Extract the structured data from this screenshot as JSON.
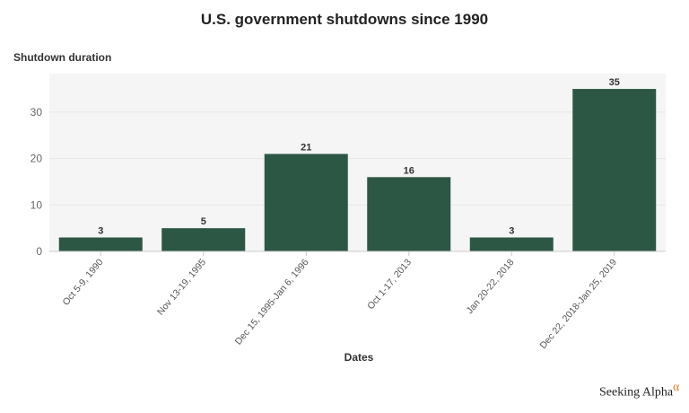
{
  "chart_data": {
    "type": "bar",
    "title": "U.S. government shutdowns since 1990",
    "xlabel": "Dates",
    "ylabel": "Shutdown duration",
    "categories": [
      "Oct 5-9, 1990",
      "Nov 13-19, 1995",
      "Dec 15, 1995-Jan 6, 1996",
      "Oct 1-17, 2013",
      "Jan 20-22, 2018",
      "Dec 22, 2018-Jan 25, 2019"
    ],
    "values": [
      3,
      5,
      21,
      16,
      3,
      35
    ],
    "yticks": [
      0,
      10,
      20,
      30
    ],
    "ylim": [
      0,
      38.3
    ],
    "grid": true,
    "bar_color": "#2d5745",
    "plot_background": "#f5f5f5"
  },
  "brand": {
    "name": "Seeking Alpha",
    "mark": "α"
  }
}
